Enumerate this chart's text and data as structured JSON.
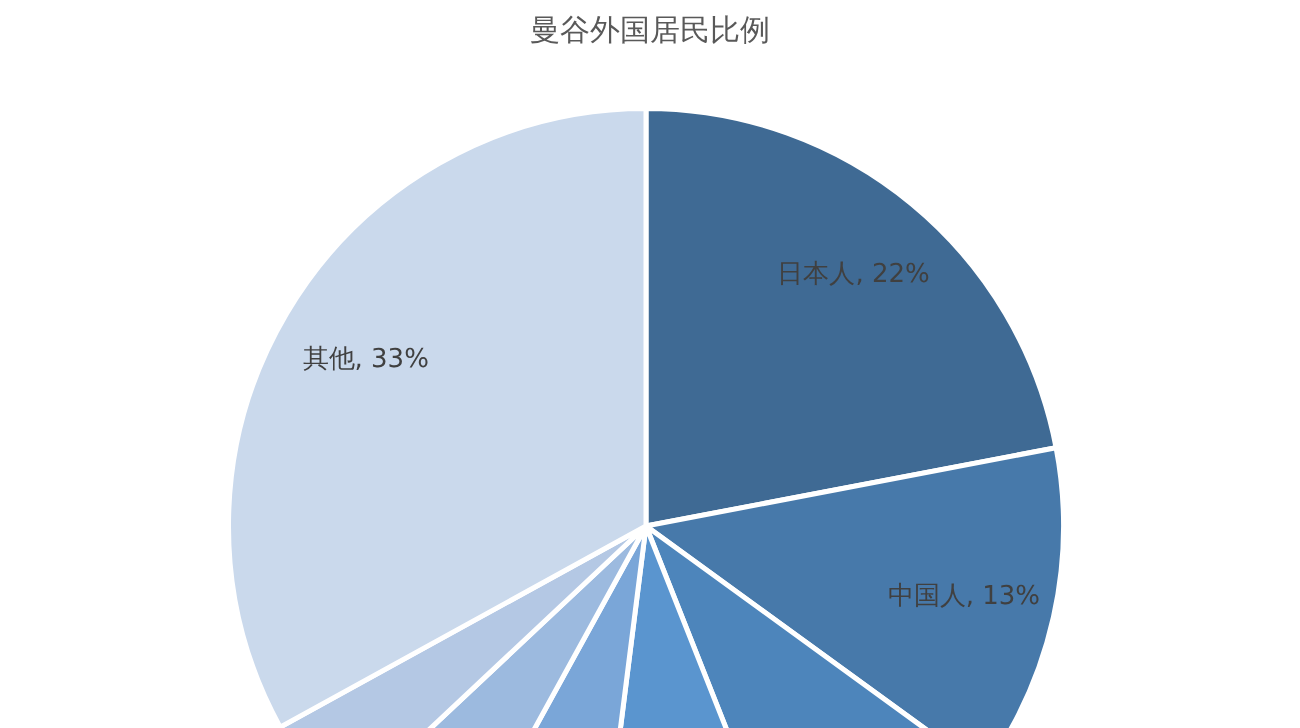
{
  "chart_data": {
    "type": "pie",
    "title": "曼谷外国居民比例",
    "categories": [
      "日本人",
      "中国人",
      null,
      null,
      null,
      null,
      null,
      "其他"
    ],
    "values": [
      22,
      13,
      9,
      8,
      6,
      5,
      4,
      33
    ],
    "value_labels": [
      "22%",
      "13%",
      null,
      null,
      null,
      null,
      null,
      "33%"
    ],
    "colors": [
      "#3f6a94",
      "#4779aa",
      "#4d85bb",
      "#5a95cf",
      "#7aa6d8",
      "#9cbadf",
      "#b4c8e4",
      "#cad9ec"
    ],
    "legend": false
  }
}
